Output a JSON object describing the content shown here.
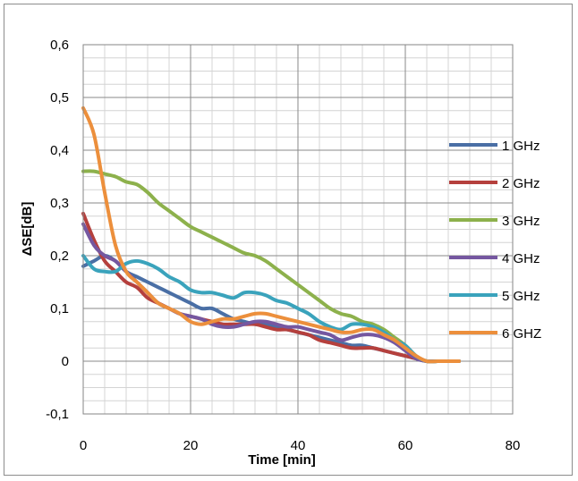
{
  "chart_data": {
    "type": "line",
    "title": "",
    "xlabel": "Time [min]",
    "ylabel": "ΔSE[dB]",
    "xlim": [
      0,
      80
    ],
    "ylim": [
      -0.1,
      0.6
    ],
    "x_ticks": [
      "0",
      "20",
      "40",
      "60",
      "80"
    ],
    "y_ticks": [
      "-0,1",
      "0",
      "0,1",
      "0,2",
      "0,3",
      "0,4",
      "0,5",
      "0,6"
    ],
    "x_tick_values": [
      0,
      20,
      40,
      60,
      80
    ],
    "y_tick_values": [
      -0.1,
      0,
      0.1,
      0.2,
      0.3,
      0.4,
      0.5,
      0.6
    ],
    "grid": true,
    "legend_position": "right",
    "series": [
      {
        "name": "1 GHz",
        "color": "#4a6fa5",
        "x": [
          0,
          2,
          4,
          6,
          8,
          10,
          12,
          14,
          16,
          18,
          20,
          22,
          24,
          26,
          28,
          30,
          32,
          34,
          36,
          38,
          40,
          42,
          44,
          46,
          48,
          50,
          52,
          54,
          56,
          58,
          60,
          62,
          64,
          66,
          68,
          70
        ],
        "y": [
          0.18,
          0.19,
          0.2,
          0.19,
          0.17,
          0.16,
          0.15,
          0.14,
          0.13,
          0.12,
          0.11,
          0.1,
          0.1,
          0.09,
          0.08,
          0.075,
          0.07,
          0.07,
          0.065,
          0.06,
          0.055,
          0.05,
          0.045,
          0.04,
          0.035,
          0.03,
          0.03,
          0.025,
          0.02,
          0.015,
          0.01,
          0.005,
          0.0,
          0.0,
          0.0,
          0.0
        ]
      },
      {
        "name": "2 GHz",
        "color": "#b5403d",
        "x": [
          0,
          2,
          4,
          6,
          8,
          10,
          12,
          14,
          16,
          18,
          20,
          22,
          24,
          26,
          28,
          30,
          32,
          34,
          36,
          38,
          40,
          42,
          44,
          46,
          48,
          50,
          52,
          54,
          56,
          58,
          60,
          62,
          64,
          66,
          68,
          70
        ],
        "y": [
          0.28,
          0.23,
          0.19,
          0.17,
          0.15,
          0.14,
          0.12,
          0.11,
          0.1,
          0.09,
          0.085,
          0.08,
          0.075,
          0.07,
          0.07,
          0.07,
          0.07,
          0.065,
          0.06,
          0.06,
          0.055,
          0.05,
          0.04,
          0.035,
          0.03,
          0.025,
          0.025,
          0.025,
          0.02,
          0.015,
          0.01,
          0.005,
          0.0,
          0.0,
          0.0,
          0.0
        ]
      },
      {
        "name": "3 GHz",
        "color": "#8db14c",
        "x": [
          0,
          2,
          4,
          6,
          8,
          10,
          12,
          14,
          16,
          18,
          20,
          22,
          24,
          26,
          28,
          30,
          32,
          34,
          36,
          38,
          40,
          42,
          44,
          46,
          48,
          50,
          52,
          54,
          56,
          58,
          60,
          62,
          64,
          66,
          68,
          70
        ],
        "y": [
          0.36,
          0.36,
          0.355,
          0.35,
          0.34,
          0.335,
          0.32,
          0.3,
          0.285,
          0.27,
          0.255,
          0.245,
          0.235,
          0.225,
          0.215,
          0.205,
          0.2,
          0.19,
          0.175,
          0.16,
          0.145,
          0.13,
          0.115,
          0.1,
          0.09,
          0.085,
          0.075,
          0.07,
          0.06,
          0.045,
          0.03,
          0.01,
          0.0,
          0.0,
          0.0,
          0.0
        ]
      },
      {
        "name": "4 GHz",
        "color": "#7557a0",
        "x": [
          0,
          2,
          4,
          6,
          8,
          10,
          12,
          14,
          16,
          18,
          20,
          22,
          24,
          26,
          28,
          30,
          32,
          34,
          36,
          38,
          40,
          42,
          44,
          46,
          48,
          50,
          52,
          54,
          56,
          58,
          60,
          62,
          64,
          66,
          68,
          70
        ],
        "y": [
          0.26,
          0.22,
          0.2,
          0.19,
          0.17,
          0.15,
          0.13,
          0.11,
          0.1,
          0.09,
          0.085,
          0.08,
          0.07,
          0.065,
          0.065,
          0.07,
          0.075,
          0.075,
          0.07,
          0.065,
          0.065,
          0.06,
          0.055,
          0.05,
          0.04,
          0.045,
          0.05,
          0.05,
          0.045,
          0.035,
          0.02,
          0.005,
          0.0,
          0.0,
          0.0,
          0.0
        ]
      },
      {
        "name": "5 GHz",
        "color": "#3aa3bc",
        "x": [
          0,
          2,
          4,
          6,
          8,
          10,
          12,
          14,
          16,
          18,
          20,
          22,
          24,
          26,
          28,
          30,
          32,
          34,
          36,
          38,
          40,
          42,
          44,
          46,
          48,
          50,
          52,
          54,
          56,
          58,
          60,
          62,
          64,
          66,
          68,
          70
        ],
        "y": [
          0.2,
          0.175,
          0.17,
          0.17,
          0.185,
          0.19,
          0.185,
          0.175,
          0.16,
          0.15,
          0.135,
          0.13,
          0.13,
          0.125,
          0.12,
          0.13,
          0.13,
          0.125,
          0.115,
          0.11,
          0.1,
          0.09,
          0.075,
          0.065,
          0.06,
          0.07,
          0.07,
          0.065,
          0.055,
          0.04,
          0.03,
          0.01,
          0.0,
          0.0,
          0.0,
          0.0
        ]
      },
      {
        "name": "6 GHZ",
        "color": "#ec8f3c",
        "x": [
          0,
          2,
          4,
          6,
          8,
          10,
          12,
          14,
          16,
          18,
          20,
          22,
          24,
          26,
          28,
          30,
          32,
          34,
          36,
          38,
          40,
          42,
          44,
          46,
          48,
          50,
          52,
          54,
          56,
          58,
          60,
          62,
          64,
          66,
          68,
          70
        ],
        "y": [
          0.48,
          0.43,
          0.32,
          0.22,
          0.17,
          0.15,
          0.13,
          0.11,
          0.1,
          0.09,
          0.075,
          0.07,
          0.075,
          0.08,
          0.08,
          0.085,
          0.09,
          0.09,
          0.085,
          0.08,
          0.075,
          0.07,
          0.065,
          0.06,
          0.055,
          0.055,
          0.06,
          0.06,
          0.05,
          0.04,
          0.025,
          0.01,
          0.0,
          0.0,
          0.0,
          0.0
        ]
      }
    ]
  }
}
